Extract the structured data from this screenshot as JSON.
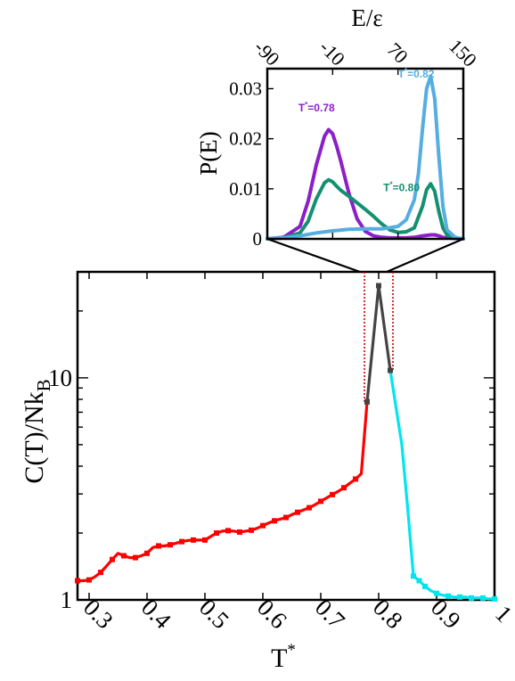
{
  "chart_data": [
    {
      "type": "line",
      "xlabel": "T",
      "xlabel_sup": "*",
      "ylabel": "C(T)/Nk",
      "ylabel_sub": "B",
      "yscale": "log",
      "xlim": [
        0.28,
        1.0
      ],
      "ylim": [
        1,
        30
      ],
      "xticks": [
        "0.3",
        "0.4",
        "0.5",
        "0.6",
        "0.7",
        "0.8",
        "0.9",
        "1"
      ],
      "xtick_values": [
        0.3,
        0.4,
        0.5,
        0.6,
        0.7,
        0.8,
        0.9,
        1.0
      ],
      "yticks": [
        "1",
        "10"
      ],
      "ytick_values": [
        1,
        10
      ],
      "grid": false,
      "series": [
        {
          "color": "#ff0000",
          "x": [
            0.28,
            0.29,
            0.3,
            0.31,
            0.32,
            0.33,
            0.34,
            0.35,
            0.36,
            0.37,
            0.38,
            0.39,
            0.4,
            0.41,
            0.42,
            0.43,
            0.44,
            0.45,
            0.46,
            0.47,
            0.48,
            0.49,
            0.5,
            0.51,
            0.52,
            0.53,
            0.54,
            0.55,
            0.56,
            0.57,
            0.58,
            0.59,
            0.6,
            0.61,
            0.62,
            0.63,
            0.64,
            0.65,
            0.66,
            0.67,
            0.68,
            0.69,
            0.7,
            0.71,
            0.72,
            0.73,
            0.74,
            0.75,
            0.76,
            0.77,
            0.78
          ],
          "y": [
            1.22,
            1.22,
            1.23,
            1.27,
            1.33,
            1.42,
            1.52,
            1.62,
            1.58,
            1.55,
            1.55,
            1.58,
            1.62,
            1.72,
            1.75,
            1.75,
            1.77,
            1.8,
            1.83,
            1.85,
            1.86,
            1.86,
            1.86,
            1.93,
            2.0,
            2.04,
            2.05,
            2.04,
            2.02,
            2.04,
            2.06,
            2.1,
            2.16,
            2.22,
            2.27,
            2.31,
            2.35,
            2.42,
            2.48,
            2.54,
            2.6,
            2.68,
            2.78,
            2.88,
            2.98,
            3.08,
            3.2,
            3.35,
            3.5,
            3.7,
            7.8
          ]
        },
        {
          "color": "#444444",
          "x": [
            0.78,
            0.8,
            0.82
          ],
          "y": [
            7.8,
            26,
            10.8
          ]
        },
        {
          "color": "#00e5f0",
          "x": [
            0.82,
            0.84,
            0.85,
            0.86,
            0.87,
            0.88,
            0.89,
            0.9,
            0.91,
            0.92,
            0.93,
            0.94,
            0.95,
            0.96,
            0.97,
            0.98,
            0.99,
            1.0
          ],
          "y": [
            10.8,
            5.0,
            2.6,
            1.28,
            1.22,
            1.15,
            1.1,
            1.07,
            1.05,
            1.04,
            1.03,
            1.03,
            1.03,
            1.02,
            1.02,
            1.02,
            1.01,
            1.01
          ]
        }
      ],
      "markers": {
        "red": [
          0.28,
          0.3,
          0.32,
          0.34,
          0.36,
          0.38,
          0.4,
          0.42,
          0.44,
          0.46,
          0.48,
          0.5,
          0.52,
          0.54,
          0.56,
          0.58,
          0.6,
          0.62,
          0.64,
          0.66,
          0.68,
          0.7,
          0.72,
          0.74,
          0.76,
          0.78
        ],
        "gray": [
          0.78,
          0.8,
          0.82
        ],
        "cyan": [
          0.86,
          0.87,
          0.88,
          0.9,
          0.92,
          0.94,
          0.96,
          0.98,
          1.0
        ]
      },
      "highlight_range": [
        0.78,
        0.82
      ],
      "highlight_color": "#cc0000"
    },
    {
      "type": "line",
      "xlabel": "E/ε",
      "ylabel": "P(E)",
      "xlim": [
        -90,
        150
      ],
      "ylim": [
        0,
        0.034
      ],
      "xticks": [
        "-90",
        "-10",
        "70",
        "150"
      ],
      "xtick_values": [
        -90,
        -10,
        70,
        150
      ],
      "yticks": [
        "0",
        "0.01",
        "0.02",
        "0.03"
      ],
      "ytick_values": [
        0,
        0.01,
        0.02,
        0.03
      ],
      "grid": false,
      "series": [
        {
          "name": "T*=0.78",
          "label_text": "T",
          "label_sup": "*",
          "label_rest": "=0.78",
          "label_pos": [
            -52,
            0.0255
          ],
          "color": "#8b1fc8",
          "x": [
            -90,
            -70,
            -50,
            -40,
            -30,
            -20,
            -15,
            -10,
            -5,
            0,
            10,
            20,
            30,
            40,
            50,
            60,
            70,
            80,
            90,
            100,
            110,
            115,
            120,
            125,
            130,
            140,
            150
          ],
          "y": [
            0.0,
            0.0003,
            0.0025,
            0.0075,
            0.0148,
            0.0205,
            0.0218,
            0.021,
            0.0185,
            0.0155,
            0.009,
            0.004,
            0.0015,
            0.0006,
            0.0003,
            0.0002,
            0.0002,
            0.0002,
            0.0003,
            0.0006,
            0.0008,
            0.0008,
            0.0006,
            0.0003,
            0.0002,
            0.0001,
            0.0
          ]
        },
        {
          "name": "T*=0.80",
          "label_text": "T",
          "label_sup": "*",
          "label_rest": "=0.80",
          "label_pos": [
            52,
            0.0095
          ],
          "color": "#139070",
          "x": [
            -90,
            -70,
            -50,
            -40,
            -30,
            -20,
            -15,
            -10,
            -5,
            0,
            10,
            20,
            30,
            40,
            50,
            60,
            70,
            80,
            90,
            100,
            105,
            110,
            115,
            120,
            125,
            130,
            140,
            150
          ],
          "y": [
            0.0,
            0.0002,
            0.0012,
            0.0035,
            0.008,
            0.0112,
            0.0118,
            0.0114,
            0.0105,
            0.0097,
            0.0085,
            0.0072,
            0.0059,
            0.0045,
            0.003,
            0.0018,
            0.0013,
            0.0014,
            0.0022,
            0.0065,
            0.0098,
            0.011,
            0.0095,
            0.0055,
            0.0022,
            0.0008,
            0.0002,
            0.0
          ]
        },
        {
          "name": "T*=0.82",
          "label_text": "T",
          "label_sup": "*",
          "label_rest": "=0.82",
          "label_pos": [
            70,
            0.0322
          ],
          "color": "#56ade0",
          "x": [
            -90,
            -70,
            -50,
            -30,
            -10,
            10,
            30,
            50,
            70,
            80,
            90,
            95,
            100,
            105,
            110,
            115,
            120,
            125,
            130,
            140,
            150
          ],
          "y": [
            0.0,
            0.0002,
            0.0006,
            0.0012,
            0.0016,
            0.0019,
            0.002,
            0.002,
            0.0025,
            0.0038,
            0.0078,
            0.013,
            0.022,
            0.03,
            0.0325,
            0.028,
            0.0165,
            0.0065,
            0.0018,
            0.0003,
            0.0
          ]
        }
      ]
    }
  ]
}
